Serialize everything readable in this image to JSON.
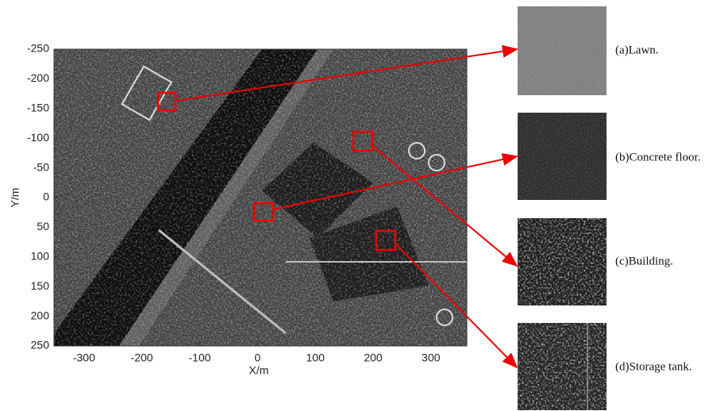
{
  "figure": {
    "xlabel": "X/m",
    "ylabel": "Y/m",
    "xlim": [
      -352,
      362
    ],
    "ylim": [
      -250,
      250
    ],
    "xticks": [
      -300,
      -200,
      -100,
      0,
      100,
      200,
      300
    ],
    "yticks": [
      -250,
      -200,
      -150,
      -100,
      -50,
      0,
      50,
      100,
      150,
      200,
      250
    ],
    "patches": [
      {
        "label": "(a)Lawn."
      },
      {
        "label": "(b)Concrete floor."
      },
      {
        "label": "(c)Building."
      },
      {
        "label": "(d)Storage tank."
      }
    ]
  }
}
